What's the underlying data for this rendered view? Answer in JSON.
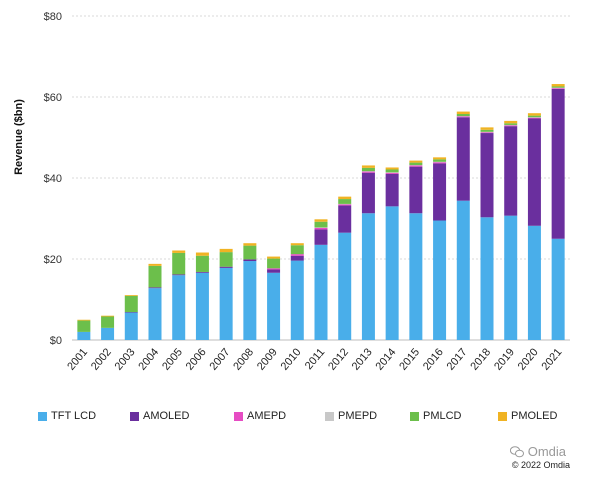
{
  "chart_data": {
    "type": "bar",
    "stacked": true,
    "ylabel": "Revenue ($bn)",
    "xlabel": "",
    "ylim": [
      0,
      80
    ],
    "yticks": [
      "$0",
      "$20",
      "$40",
      "$60",
      "$80"
    ],
    "ytick_values": [
      0,
      20,
      40,
      60,
      80
    ],
    "grid": "horizontal dotted",
    "legend_position": "bottom",
    "categories": [
      "2001",
      "2002",
      "2003",
      "2004",
      "2005",
      "2006",
      "2007",
      "2008",
      "2009",
      "2010",
      "2011",
      "2012",
      "2013",
      "2014",
      "2015",
      "2016",
      "2017",
      "2018",
      "2019",
      "2020",
      "2021"
    ],
    "series": [
      {
        "name": "TFT LCD",
        "color": "#49aeea",
        "values": [
          2.0,
          3.0,
          6.8,
          12.8,
          16.0,
          16.6,
          17.8,
          19.5,
          16.6,
          19.6,
          23.5,
          26.5,
          31.3,
          33.0,
          31.3,
          29.5,
          34.4,
          30.3,
          30.7,
          28.2,
          25.0
        ]
      },
      {
        "name": "AMOLED",
        "color": "#6a2f9e",
        "values": [
          0.0,
          0.0,
          0.1,
          0.2,
          0.2,
          0.2,
          0.3,
          0.4,
          0.8,
          1.2,
          3.8,
          6.7,
          10.0,
          8.0,
          11.5,
          14.1,
          20.6,
          20.8,
          22.1,
          26.5,
          37.0
        ]
      },
      {
        "name": "AMEPD",
        "color": "#e64cc3",
        "values": [
          0.0,
          0.0,
          0.0,
          0.0,
          0.0,
          0.0,
          0.0,
          0.0,
          0.3,
          0.4,
          0.4,
          0.3,
          0.3,
          0.3,
          0.3,
          0.3,
          0.2,
          0.2,
          0.2,
          0.2,
          0.2
        ]
      },
      {
        "name": "PMEPD",
        "color": "#c8c8c8",
        "values": [
          0.0,
          0.0,
          0.0,
          0.0,
          0.0,
          0.0,
          0.0,
          0.0,
          0.0,
          0.0,
          0.1,
          0.1,
          0.1,
          0.1,
          0.1,
          0.1,
          0.1,
          0.1,
          0.1,
          0.1,
          0.1
        ]
      },
      {
        "name": "PMLCD",
        "color": "#6cbf4b",
        "values": [
          2.8,
          2.8,
          4.0,
          5.3,
          5.3,
          4.0,
          3.6,
          3.4,
          2.4,
          2.2,
          1.4,
          1.2,
          0.8,
          0.7,
          0.6,
          0.6,
          0.5,
          0.5,
          0.4,
          0.4,
          0.3
        ]
      },
      {
        "name": "PMOLED",
        "color": "#f0b323",
        "values": [
          0.2,
          0.2,
          0.2,
          0.5,
          0.6,
          0.8,
          0.8,
          0.6,
          0.5,
          0.5,
          0.6,
          0.6,
          0.6,
          0.5,
          0.5,
          0.5,
          0.6,
          0.6,
          0.6,
          0.6,
          0.6
        ]
      }
    ]
  },
  "branding": {
    "logo_text": "Omdia",
    "logo_icon": "wechat-bubbles-icon",
    "copyright": "© 2022 Omdia"
  }
}
